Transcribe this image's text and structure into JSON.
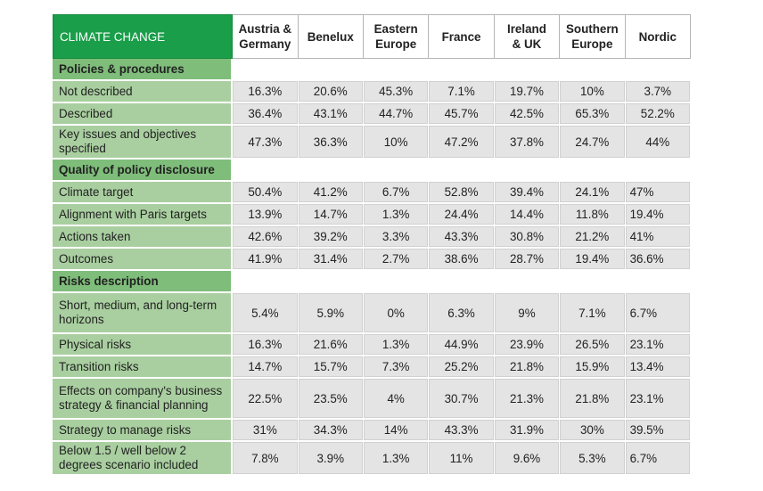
{
  "table": {
    "corner": "CLIMATE CHANGE",
    "columns": [
      [
        "Austria &",
        "Germany"
      ],
      [
        "Benelux"
      ],
      [
        "Eastern",
        "Europe"
      ],
      [
        "France"
      ],
      [
        "Ireland",
        "& UK"
      ],
      [
        "Southern",
        "Europe"
      ],
      [
        "Nordic"
      ]
    ],
    "sections": [
      {
        "title": "Policies & procedures",
        "rows": [
          {
            "label": "Not described",
            "values": [
              "16.3%",
              "20.6%",
              "45.3%",
              "7.1%",
              "19.7%",
              "10%",
              "3.7%"
            ]
          },
          {
            "label": "Described",
            "values": [
              "36.4%",
              "43.1%",
              "44.7%",
              "45.7%",
              "42.5%",
              "65.3%",
              "52.2%"
            ]
          },
          {
            "label": "Key issues and objectives specified",
            "values": [
              "47.3%",
              "36.3%",
              "10%",
              "47.2%",
              "37.8%",
              "24.7%",
              "44%"
            ]
          }
        ]
      },
      {
        "title": "Quality of policy disclosure",
        "rows": [
          {
            "label": "Climate target",
            "values": [
              "50.4%",
              "41.2%",
              "6.7%",
              "52.8%",
              "39.4%",
              "24.1%",
              "47%"
            ]
          },
          {
            "label": "Alignment with Paris targets",
            "values": [
              "13.9%",
              "14.7%",
              "1.3%",
              "24.4%",
              "14.4%",
              "11.8%",
              "19.4%"
            ]
          },
          {
            "label": "Actions taken",
            "values": [
              "42.6%",
              "39.2%",
              "3.3%",
              "43.3%",
              "30.8%",
              "21.2%",
              "41%"
            ]
          },
          {
            "label": "Outcomes",
            "values": [
              "41.9%",
              "31.4%",
              "2.7%",
              "38.6%",
              "28.7%",
              "19.4%",
              "36.6%"
            ]
          }
        ]
      },
      {
        "title": "Risks description",
        "rows": [
          {
            "label": "Short, medium, and long-term horizons",
            "values": [
              "5.4%",
              "5.9%",
              "0%",
              "6.3%",
              "9%",
              "7.1%",
              "6.7%"
            ]
          },
          {
            "label": "Physical risks",
            "values": [
              "16.3%",
              "21.6%",
              "1.3%",
              "44.9%",
              "23.9%",
              "26.5%",
              "23.1%"
            ]
          },
          {
            "label": "Transition risks",
            "values": [
              "14.7%",
              "15.7%",
              "7.3%",
              "25.2%",
              "21.8%",
              "15.9%",
              "13.4%"
            ]
          },
          {
            "label": "Effects on company's business strategy & financial planning",
            "values": [
              "22.5%",
              "23.5%",
              "4%",
              "30.7%",
              "21.3%",
              "21.8%",
              "23.1%"
            ]
          },
          {
            "label": "Strategy to manage risks",
            "values": [
              "31%",
              "34.3%",
              "14%",
              "43.3%",
              "31.9%",
              "30%",
              "39.5%"
            ]
          },
          {
            "label": "Below 1.5 / well below 2 degrees scenario included",
            "values": [
              "7.8%",
              "3.9%",
              "1.3%",
              "11%",
              "9.6%",
              "5.3%",
              "6.7%"
            ]
          }
        ]
      }
    ]
  }
}
